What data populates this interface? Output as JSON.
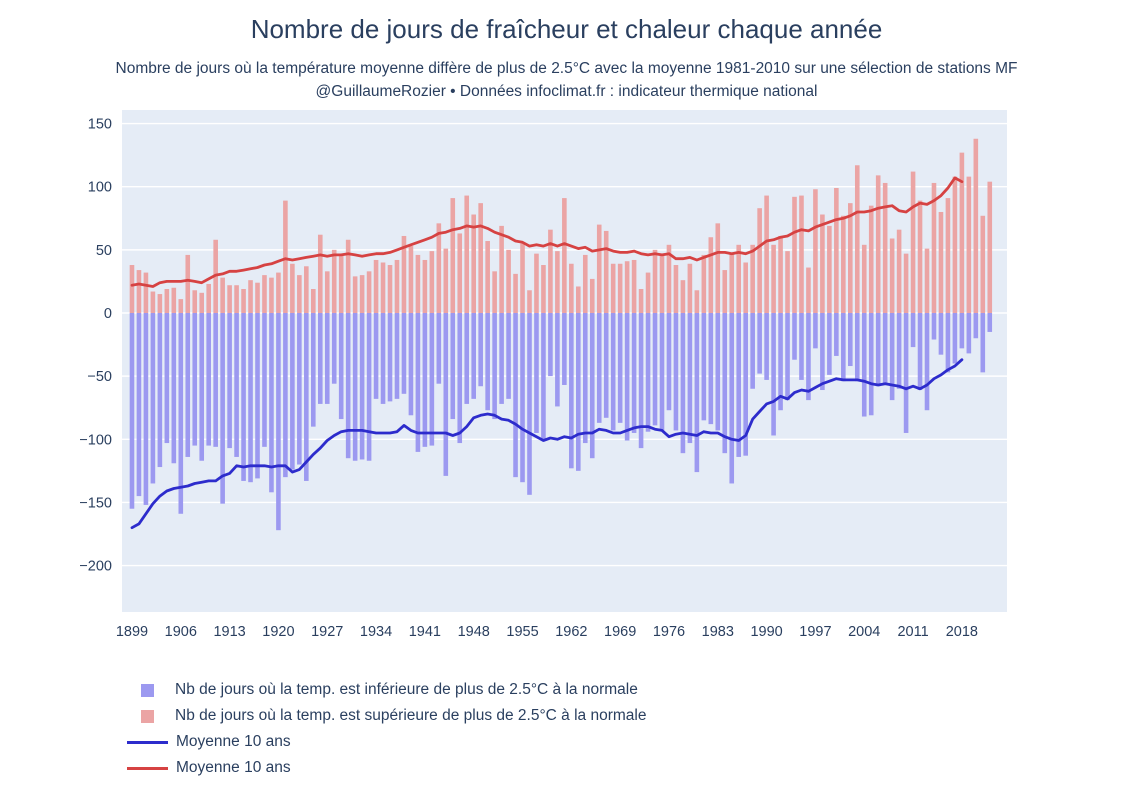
{
  "title": "Nombre de jours de fraîcheur et chaleur chaque année",
  "subtitle_line1": "Nombre de jours où la température moyenne diffère de plus de 2.5°C avec la moyenne 1981-2010 sur une sélection de stations MF",
  "subtitle_line2": "@GuillaumeRozier • Données infoclimat.fr : indicateur thermique national",
  "colors": {
    "panel_background": "#e5ecf6",
    "gridline": "#ffffff",
    "text": "#2a3f5f",
    "cool_bar": "#9c99f0",
    "warm_bar": "#eba4a4",
    "cool_line": "#2d2ccc",
    "warm_line": "#d64242"
  },
  "legend": {
    "items": [
      {
        "label": "Nb de jours où la temp. est inférieure de plus de 2.5°C à la normale",
        "marker": "square",
        "color_key": "cool_bar"
      },
      {
        "label": "Nb de jours où la temp. est supérieure de plus de 2.5°C à la normale",
        "marker": "square",
        "color_key": "warm_bar"
      },
      {
        "label": "Moyenne 10 ans",
        "marker": "line",
        "color_key": "cool_line"
      },
      {
        "label": "Moyenne 10 ans",
        "marker": "line",
        "color_key": "warm_line"
      }
    ]
  },
  "chart_data": {
    "type": "bar",
    "title": "Nombre de jours de fraîcheur et chaleur chaque année",
    "xlabel": "",
    "ylabel": "",
    "x_start": 1899,
    "x_end": 2022,
    "line_x_end": 2018,
    "xticks": [
      1899,
      1906,
      1913,
      1920,
      1927,
      1934,
      1941,
      1948,
      1955,
      1962,
      1969,
      1976,
      1983,
      1990,
      1997,
      2004,
      2011,
      2018
    ],
    "yticks": [
      150,
      100,
      50,
      0,
      -50,
      -100,
      -150,
      -200
    ],
    "ylim": [
      -237,
      161
    ],
    "grid": true,
    "legend_position": "bottom-left",
    "series": [
      {
        "name": "Nb de jours où la temp. est inférieure de plus de 2.5°C à la normale",
        "type": "bar",
        "color_key": "cool_bar",
        "values": [
          -155,
          -145,
          -152,
          -135,
          -122,
          -103,
          -119,
          -159,
          -114,
          -105,
          -117,
          -105,
          -106,
          -151,
          -107,
          -114,
          -133,
          -134,
          -131,
          -106,
          -142,
          -172,
          -130,
          -124,
          -120,
          -133,
          -90,
          -72,
          -72,
          -56,
          -84,
          -115,
          -117,
          -116,
          -117,
          -68,
          -72,
          -70,
          -68,
          -64,
          -81,
          -110,
          -106,
          -105,
          -56,
          -129,
          -84,
          -103,
          -72,
          -68,
          -58,
          -77,
          -84,
          -72,
          -68,
          -130,
          -134,
          -144,
          -95,
          -101,
          -50,
          -74,
          -57,
          -123,
          -125,
          -103,
          -115,
          -87,
          -83,
          -93,
          -87,
          -101,
          -95,
          -107,
          -94,
          -89,
          -93,
          -77,
          -93,
          -111,
          -103,
          -126,
          -85,
          -88,
          -93,
          -111,
          -135,
          -114,
          -113,
          -60,
          -48,
          -53,
          -97,
          -77,
          -69,
          -37,
          -53,
          -69,
          -28,
          -61,
          -49,
          -34,
          -54,
          -42,
          -54,
          -82,
          -81,
          -58,
          -56,
          -69,
          -60,
          -95,
          -27,
          -61,
          -77,
          -21,
          -33,
          -47,
          -40,
          -28,
          -32,
          -20,
          -47,
          -15
        ]
      },
      {
        "name": "Nb de jours où la temp. est supérieure de plus de 2.5°C à la normale",
        "type": "bar",
        "color_key": "warm_bar",
        "values": [
          38,
          34,
          32,
          17,
          15,
          19,
          20,
          11,
          46,
          18,
          16,
          23,
          58,
          28,
          22,
          22,
          19,
          26,
          24,
          30,
          28,
          32,
          89,
          39,
          30,
          37,
          19,
          62,
          33,
          50,
          46,
          58,
          29,
          30,
          33,
          42,
          40,
          38,
          42,
          61,
          53,
          46,
          42,
          49,
          71,
          51,
          91,
          63,
          93,
          78,
          87,
          57,
          33,
          69,
          50,
          31,
          55,
          18,
          47,
          38,
          66,
          49,
          91,
          39,
          21,
          46,
          27,
          70,
          65,
          39,
          39,
          41,
          42,
          19,
          32,
          50,
          47,
          54,
          38,
          26,
          39,
          18,
          46,
          60,
          71,
          34,
          47,
          54,
          40,
          54,
          83,
          93,
          54,
          61,
          49,
          92,
          93,
          36,
          98,
          78,
          69,
          99,
          77,
          87,
          117,
          54,
          85,
          109,
          103,
          59,
          66,
          47,
          112,
          89,
          51,
          103,
          80,
          91,
          108,
          127,
          108,
          138,
          77,
          104
        ]
      },
      {
        "name": "Moyenne 10 ans",
        "type": "line",
        "color_key": "cool_line",
        "values": [
          -170,
          -167,
          -159,
          -151,
          -145,
          -141,
          -139,
          -138,
          -137,
          -135,
          -134,
          -133,
          -133,
          -129,
          -127,
          -121,
          -122,
          -121,
          -121,
          -121,
          -122,
          -121,
          -121,
          -126,
          -124,
          -118,
          -112,
          -107,
          -101,
          -97,
          -94,
          -93,
          -93,
          -93,
          -94,
          -95,
          -95,
          -95,
          -94,
          -89,
          -93,
          -95,
          -95,
          -95,
          -95,
          -95,
          -97,
          -95,
          -90,
          -83,
          -81,
          -80,
          -81,
          -84,
          -85,
          -88,
          -92,
          -95,
          -98,
          -101,
          -99,
          -100,
          -98,
          -99,
          -96,
          -95,
          -95,
          -92,
          -93,
          -95,
          -95,
          -93,
          -91,
          -90,
          -90,
          -92,
          -93,
          -98,
          -96,
          -95,
          -96,
          -97,
          -94,
          -95,
          -95,
          -98,
          -100,
          -101,
          -97,
          -84,
          -78,
          -72,
          -70,
          -66,
          -68,
          -63,
          -61,
          -62,
          -59,
          -56,
          -54,
          -52,
          -53,
          -53,
          -53,
          -54,
          -56,
          -57,
          -56,
          -57,
          -58,
          -60,
          -58,
          -60,
          -57,
          -52,
          -49,
          -45,
          -42,
          -37
        ]
      },
      {
        "name": "Moyenne 10 ans",
        "type": "line",
        "color_key": "warm_line",
        "values": [
          22,
          23,
          22,
          21,
          24,
          25,
          25,
          25,
          26,
          25,
          24,
          27,
          30,
          31,
          33,
          33,
          34,
          35,
          36,
          38,
          39,
          41,
          43,
          42,
          43,
          44,
          45,
          46,
          45,
          46,
          46,
          47,
          46,
          45,
          46,
          47,
          47,
          48,
          50,
          52,
          54,
          56,
          58,
          60,
          63,
          64,
          66,
          67,
          69,
          68,
          69,
          67,
          64,
          62,
          60,
          57,
          56,
          53,
          54,
          53,
          55,
          53,
          55,
          53,
          51,
          52,
          49,
          50,
          51,
          49,
          48,
          48,
          49,
          47,
          46,
          47,
          46,
          47,
          43,
          43,
          44,
          42,
          44,
          46,
          48,
          48,
          47,
          48,
          47,
          49,
          53,
          57,
          58,
          60,
          61,
          64,
          66,
          65,
          68,
          70,
          72,
          74,
          75,
          77,
          80,
          80,
          81,
          83,
          84,
          85,
          81,
          80,
          84,
          87,
          86,
          89,
          93,
          99,
          107,
          104
        ]
      }
    ]
  }
}
